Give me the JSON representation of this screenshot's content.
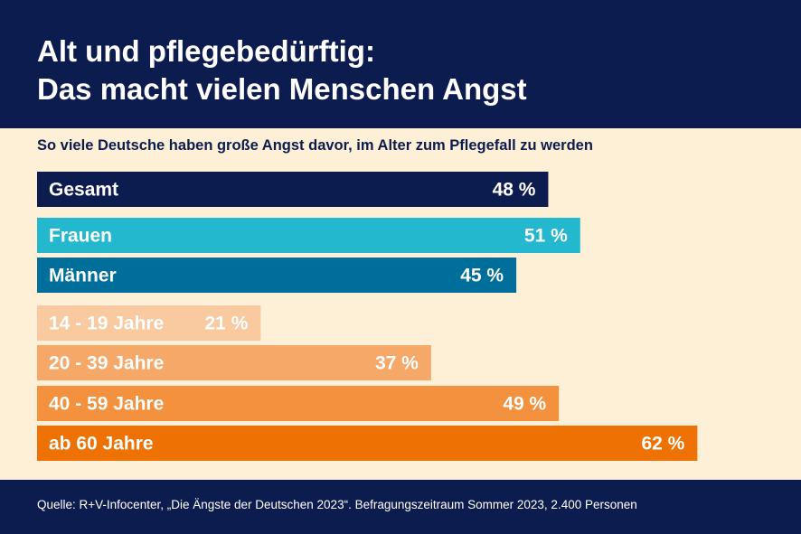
{
  "header": {
    "title_line1": "Alt und pflegebedürftig:",
    "title_line2": "Das macht vielen Menschen Angst"
  },
  "subtitle": "So viele Deutsche haben große Angst davor, im Alter zum Pflegefall zu werden",
  "footer": {
    "source": "Quelle: R+V-Infocenter, „Die Ängste der Deutschen 2023“. Befragungszeitraum Sommer 2023, 2.400 Personen"
  },
  "colors": {
    "background": "#fdf0d6",
    "header": "#0d1c4e",
    "gesamt": "#0d1c4e",
    "frauen": "#24b8cf",
    "maenner": "#006e9a",
    "age_14_19": "#f9c9a0",
    "age_20_39": "#f6a869",
    "age_40_59": "#f3913f",
    "age_60": "#ee7203"
  },
  "chart_data": {
    "type": "bar",
    "orientation": "horizontal",
    "unit": "%",
    "xlim": [
      0,
      100
    ],
    "grid": false,
    "categories": [
      "Gesamt",
      "Frauen",
      "Männer",
      "14 - 19 Jahre",
      "20 - 39 Jahre",
      "40 - 59 Jahre",
      "ab 60 Jahre"
    ],
    "values": [
      48,
      51,
      45,
      21,
      37,
      49,
      62
    ],
    "value_labels": [
      "48 %",
      "51 %",
      "45 %",
      "21 %",
      "37 %",
      "49 %",
      "62 %"
    ],
    "bar_colors": [
      "#0d1c4e",
      "#24b8cf",
      "#006e9a",
      "#f9c9a0",
      "#f6a869",
      "#f3913f",
      "#ee7203"
    ]
  }
}
